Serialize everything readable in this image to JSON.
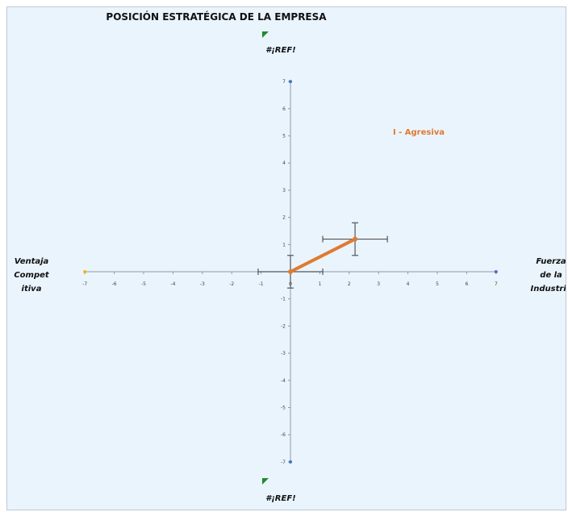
{
  "chart_data": {
    "type": "scatter",
    "title": "POSICIÓN ESTRATÉGICA DE LA EMPRESA",
    "xlim": [
      -7,
      7
    ],
    "ylim": [
      -7,
      7
    ],
    "x_ticks": [
      "-7",
      "-6",
      "-5",
      "-4",
      "-3",
      "-2",
      "-1",
      "0",
      "1",
      "2",
      "3",
      "4",
      "5",
      "6",
      "7"
    ],
    "y_ticks": [
      "-7",
      "-6",
      "-5",
      "-4",
      "-3",
      "-2",
      "-1",
      "0",
      "1",
      "2",
      "3",
      "4",
      "5",
      "6",
      "7"
    ],
    "top_label": "#¡REF!",
    "bottom_label": "#¡REF!",
    "left_label": [
      "Ventaja",
      "Compet",
      "itiva"
    ],
    "right_label": [
      "Fuerza",
      "de la",
      "Industria"
    ],
    "quadrant_label": "I - Agresiva",
    "vector": {
      "from": {
        "x": 0,
        "y": 0
      },
      "to": {
        "x": 2.2,
        "y": 1.2
      },
      "origin_error": {
        "x": 1.1,
        "y": 0.6
      },
      "end_error": {
        "x": 1.1,
        "y": 0.6
      }
    },
    "axis_points": [
      {
        "x": -7,
        "y": 0,
        "color": "#f2b600"
      },
      {
        "x": 7,
        "y": 0,
        "color": "#4472c4"
      },
      {
        "x": 0,
        "y": 7,
        "color": "#4472c4"
      },
      {
        "x": 0,
        "y": -7,
        "color": "#4472c4"
      }
    ],
    "colors": {
      "vector": "#e07a2f",
      "marker": "#1f8a2e",
      "axis": "#8c9aa6",
      "errorbar": "#555555"
    }
  }
}
